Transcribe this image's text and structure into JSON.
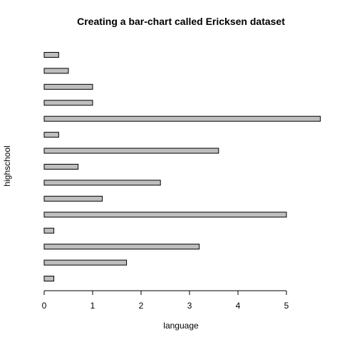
{
  "chart_data": {
    "type": "bar",
    "orientation": "horizontal",
    "title": "Creating a bar-chart called Ericksen dataset",
    "xlabel": "language",
    "ylabel": "highschool",
    "xlim": [
      0,
      5.7
    ],
    "x_ticks": [
      "0",
      "1",
      "2",
      "3",
      "4",
      "5"
    ],
    "values": [
      0.2,
      1.7,
      3.2,
      0.2,
      5.0,
      1.2,
      2.4,
      0.7,
      3.6,
      0.3,
      5.7,
      1.0,
      1.0,
      0.5,
      0.3
    ],
    "bar_color": "#bebebe",
    "grid": false,
    "legend": "none"
  }
}
